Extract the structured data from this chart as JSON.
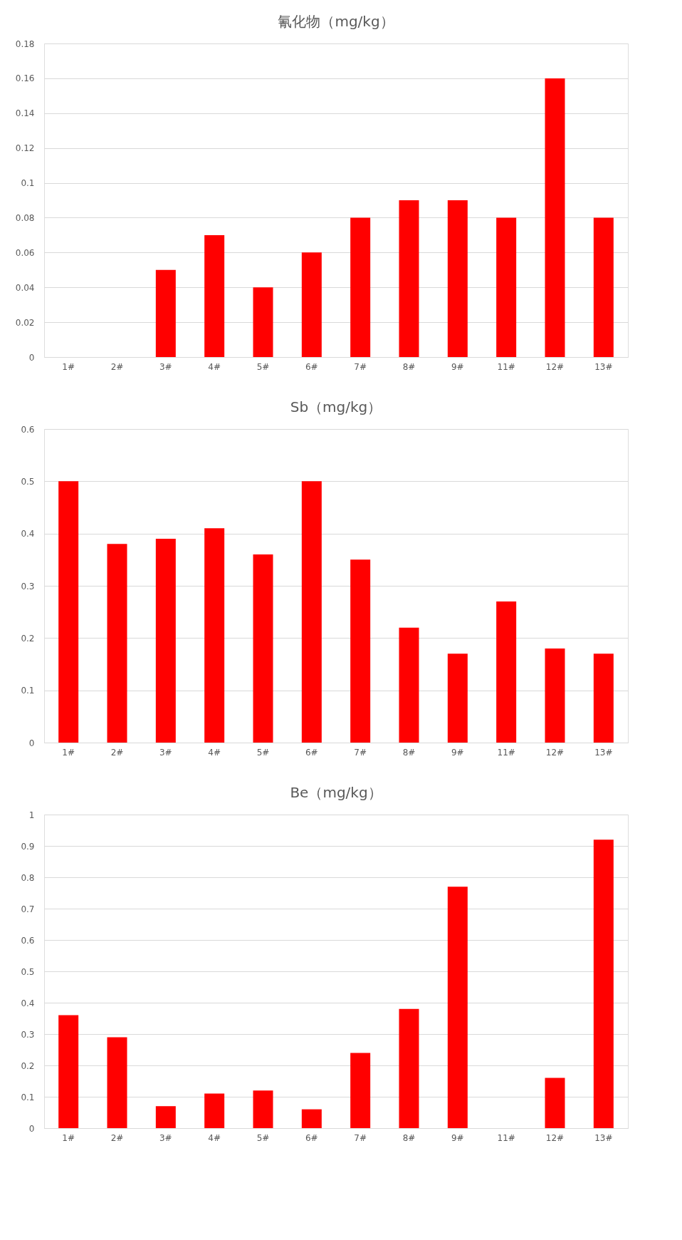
{
  "chart_data": [
    {
      "type": "bar",
      "title": "氰化物（mg/kg）",
      "categories": [
        "1#",
        "2#",
        "3#",
        "4#",
        "5#",
        "6#",
        "7#",
        "8#",
        "9#",
        "11#",
        "12#",
        "13#"
      ],
      "values": [
        null,
        null,
        0.05,
        0.07,
        0.04,
        0.06,
        0.08,
        0.09,
        0.09,
        0.08,
        0.16,
        0.08
      ],
      "color": "#ff0000",
      "ylim": [
        0,
        0.18
      ],
      "yticks": [
        0,
        0.02,
        0.04,
        0.06,
        0.08,
        0.1,
        0.12,
        0.14,
        0.16,
        0.18
      ],
      "grid": "y"
    },
    {
      "type": "bar",
      "title": "Sb（mg/kg）",
      "categories": [
        "1#",
        "2#",
        "3#",
        "4#",
        "5#",
        "6#",
        "7#",
        "8#",
        "9#",
        "11#",
        "12#",
        "13#"
      ],
      "values": [
        0.5,
        0.38,
        0.39,
        0.41,
        0.36,
        0.5,
        0.35,
        0.22,
        0.17,
        0.27,
        0.18,
        0.17
      ],
      "color": "#ff0000",
      "ylim": [
        0,
        0.6
      ],
      "yticks": [
        0,
        0.1,
        0.2,
        0.3,
        0.4,
        0.5,
        0.6
      ],
      "grid": "y"
    },
    {
      "type": "bar",
      "title": "Be（mg/kg）",
      "categories": [
        "1#",
        "2#",
        "3#",
        "4#",
        "5#",
        "6#",
        "7#",
        "8#",
        "9#",
        "11#",
        "12#",
        "13#"
      ],
      "values": [
        0.36,
        0.29,
        0.07,
        0.11,
        0.12,
        0.06,
        0.24,
        0.38,
        0.77,
        null,
        0.16,
        0.92
      ],
      "color": "#ff0000",
      "ylim": [
        0,
        1
      ],
      "yticks": [
        0,
        0.1,
        0.2,
        0.3,
        0.4,
        0.5,
        0.6,
        0.7,
        0.8,
        0.9,
        1
      ],
      "grid": "y"
    }
  ]
}
